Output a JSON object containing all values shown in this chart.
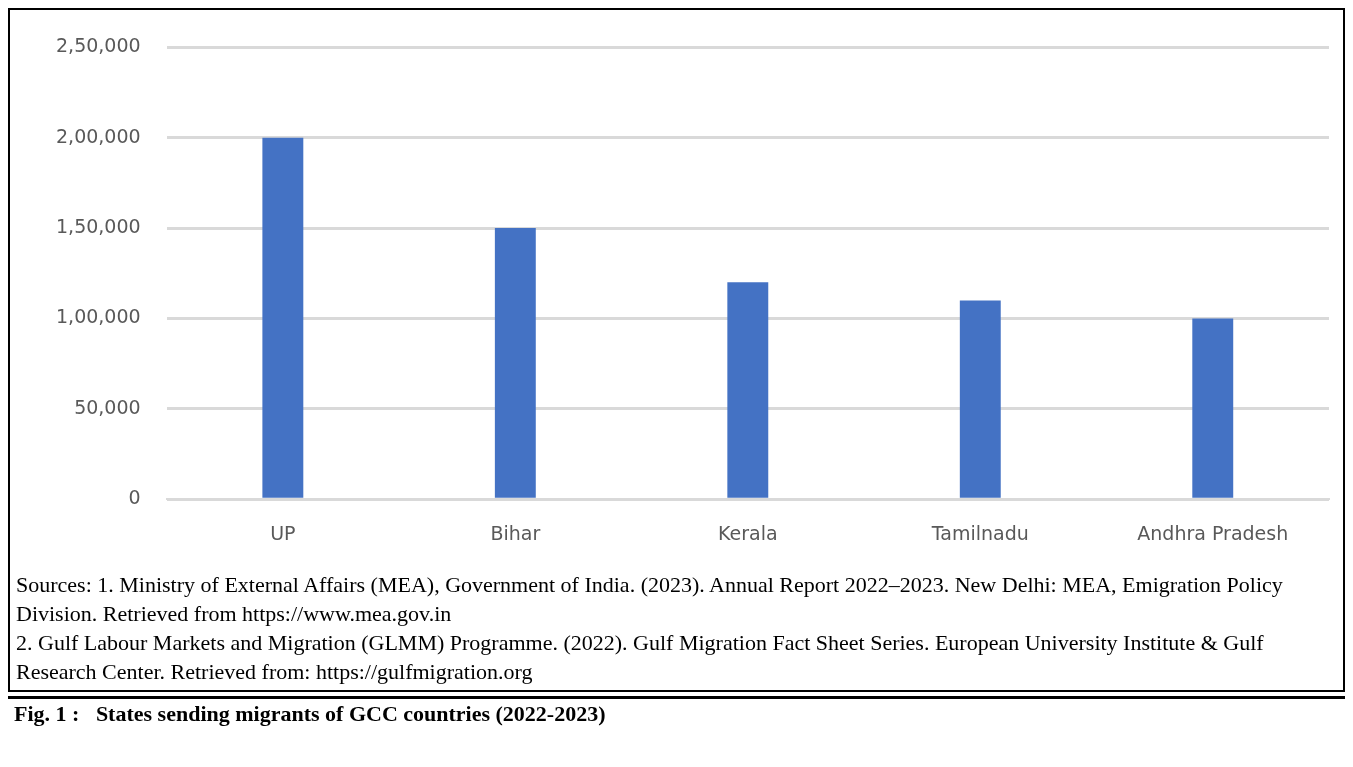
{
  "chart_data": {
    "type": "bar",
    "title": "Fig. 1 :   States sending migrants of GCC countries (2022-2023)",
    "categories": [
      "UP",
      "Bihar",
      "Kerala",
      "Tamilnadu",
      "Andhra Pradesh"
    ],
    "values": [
      200000,
      150000,
      120000,
      110000,
      100000
    ],
    "color": "#4472c4",
    "ylim": [
      0,
      250000
    ],
    "yticks": [
      {
        "value": 0,
        "label": "0"
      },
      {
        "value": 50000,
        "label": "50,000"
      },
      {
        "value": 100000,
        "label": "1,00,000"
      },
      {
        "value": 150000,
        "label": "1,50,000"
      },
      {
        "value": 200000,
        "label": "2,00,000"
      },
      {
        "value": 250000,
        "label": "2,50,000"
      }
    ],
    "grid": "y",
    "annotations": [
      "Sources: 1. Ministry of External Affairs (MEA), Government of India. (2023). Annual Report 2022–2023. New Delhi: MEA, Emigration Policy Division. Retrieved from https://www.mea.gov.in",
      "2. Gulf Labour Markets and Migration (GLMM) Programme. (2022). Gulf Migration Fact Sheet Series. European University Institute & Gulf Research Center. Retrieved from: https://gulfmigration.org"
    ]
  }
}
